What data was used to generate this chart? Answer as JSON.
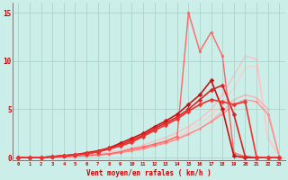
{
  "background_color": "#cceee8",
  "grid_color": "#aad4cc",
  "text_color": "#cc0000",
  "xlabel": "Vent moyen/en rafales ( km/h )",
  "x_ticks": [
    0,
    1,
    2,
    3,
    4,
    5,
    6,
    7,
    8,
    9,
    10,
    11,
    12,
    13,
    14,
    15,
    16,
    17,
    18,
    19,
    20,
    21,
    22,
    23
  ],
  "ylim": [
    -0.3,
    16
  ],
  "yticks": [
    0,
    5,
    10,
    15
  ],
  "lines": [
    {
      "x": [
        0,
        1,
        2,
        3,
        4,
        5,
        6,
        7,
        8,
        9,
        10,
        11,
        12,
        13,
        14,
        15,
        16,
        17,
        18,
        19,
        20,
        21,
        22,
        23
      ],
      "y": [
        0,
        0,
        0,
        0.05,
        0.1,
        0.2,
        0.3,
        0.4,
        0.55,
        0.7,
        1.0,
        1.3,
        1.7,
        2.1,
        2.6,
        3.2,
        4.0,
        5.0,
        6.5,
        8.5,
        10.5,
        10.2,
        2.0,
        0.2
      ],
      "color": "#ffbbbb",
      "linewidth": 0.9,
      "marker": "o",
      "markersize": 1.5,
      "zorder": 1
    },
    {
      "x": [
        0,
        1,
        2,
        3,
        4,
        5,
        6,
        7,
        8,
        9,
        10,
        11,
        12,
        13,
        14,
        15,
        16,
        17,
        18,
        19,
        20,
        21,
        22,
        23
      ],
      "y": [
        0,
        0,
        0,
        0.05,
        0.1,
        0.15,
        0.25,
        0.35,
        0.5,
        0.65,
        0.9,
        1.1,
        1.4,
        1.8,
        2.2,
        2.8,
        3.5,
        4.4,
        5.5,
        7.2,
        9.3,
        9.5,
        2.2,
        0.2
      ],
      "color": "#ffcccc",
      "linewidth": 0.9,
      "marker": "o",
      "markersize": 1.5,
      "zorder": 1
    },
    {
      "x": [
        0,
        1,
        2,
        3,
        4,
        5,
        6,
        7,
        8,
        9,
        10,
        11,
        12,
        13,
        14,
        15,
        16,
        17,
        18,
        19,
        20,
        21,
        22,
        23
      ],
      "y": [
        0,
        0,
        0,
        0.05,
        0.1,
        0.15,
        0.2,
        0.3,
        0.4,
        0.55,
        0.75,
        1.0,
        1.3,
        1.6,
        2.0,
        2.5,
        3.0,
        3.8,
        4.8,
        6.0,
        6.5,
        6.2,
        5.0,
        0.15
      ],
      "color": "#ffaaaa",
      "linewidth": 0.9,
      "marker": "o",
      "markersize": 1.5,
      "zorder": 1
    },
    {
      "x": [
        0,
        1,
        2,
        3,
        4,
        5,
        6,
        7,
        8,
        9,
        10,
        11,
        12,
        13,
        14,
        15,
        16,
        17,
        18,
        19,
        20,
        21,
        22,
        23
      ],
      "y": [
        0,
        0,
        0,
        0.05,
        0.1,
        0.15,
        0.2,
        0.25,
        0.35,
        0.5,
        0.7,
        0.9,
        1.2,
        1.5,
        1.9,
        2.4,
        3.0,
        3.7,
        4.5,
        5.5,
        6.0,
        5.8,
        4.5,
        0.1
      ],
      "color": "#ff8888",
      "linewidth": 0.9,
      "marker": "o",
      "markersize": 1.5,
      "zorder": 2
    },
    {
      "x": [
        0,
        1,
        2,
        3,
        4,
        5,
        6,
        7,
        8,
        9,
        10,
        11,
        12,
        13,
        14,
        15,
        16,
        17,
        18,
        19,
        20,
        21,
        22,
        23
      ],
      "y": [
        0,
        0,
        0,
        0.05,
        0.1,
        0.15,
        0.2,
        0.3,
        0.4,
        0.6,
        0.9,
        1.1,
        1.4,
        1.7,
        2.2,
        15.0,
        11.0,
        13.0,
        10.5,
        0.5,
        0.1,
        0,
        0,
        0
      ],
      "color": "#ff6666",
      "linewidth": 1.0,
      "marker": "o",
      "markersize": 2.0,
      "zorder": 3
    },
    {
      "x": [
        0,
        1,
        2,
        3,
        4,
        5,
        6,
        7,
        8,
        9,
        10,
        11,
        12,
        13,
        14,
        15,
        16,
        17,
        18,
        19,
        20,
        21,
        22,
        23
      ],
      "y": [
        0,
        0,
        0,
        0.1,
        0.2,
        0.3,
        0.5,
        0.7,
        1.0,
        1.5,
        2.0,
        2.5,
        3.2,
        3.8,
        4.5,
        5.5,
        6.5,
        8.0,
        5.0,
        0.2,
        0,
        0,
        0,
        0
      ],
      "color": "#cc1111",
      "linewidth": 1.2,
      "marker": "D",
      "markersize": 2.5,
      "zorder": 4
    },
    {
      "x": [
        0,
        1,
        2,
        3,
        4,
        5,
        6,
        7,
        8,
        9,
        10,
        11,
        12,
        13,
        14,
        15,
        16,
        17,
        18,
        19,
        20,
        21,
        22,
        23
      ],
      "y": [
        0,
        0,
        0,
        0.1,
        0.2,
        0.3,
        0.4,
        0.6,
        0.9,
        1.3,
        1.8,
        2.3,
        3.0,
        3.6,
        4.2,
        5.0,
        6.0,
        7.0,
        7.5,
        4.5,
        0.1,
        0,
        0,
        0
      ],
      "color": "#dd2222",
      "linewidth": 1.2,
      "marker": "D",
      "markersize": 2.5,
      "zorder": 4
    },
    {
      "x": [
        0,
        1,
        2,
        3,
        4,
        5,
        6,
        7,
        8,
        9,
        10,
        11,
        12,
        13,
        14,
        15,
        16,
        17,
        18,
        19,
        20,
        21,
        22,
        23
      ],
      "y": [
        0,
        0,
        0,
        0.1,
        0.2,
        0.3,
        0.4,
        0.6,
        0.9,
        1.2,
        1.6,
        2.2,
        2.8,
        3.4,
        4.0,
        4.8,
        5.5,
        6.0,
        5.8,
        5.5,
        5.8,
        0.05,
        0,
        0
      ],
      "color": "#ee3333",
      "linewidth": 1.2,
      "marker": "D",
      "markersize": 2.5,
      "zorder": 4
    }
  ]
}
